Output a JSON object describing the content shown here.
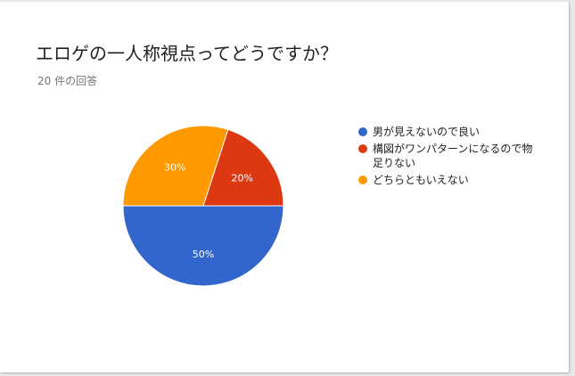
{
  "title": "エロゲの一人称視点ってどうですか？",
  "subtitle": "20 件の回答",
  "chart_data": {
    "type": "pie",
    "slices": [
      {
        "label": "男が見えないので良い",
        "value": 50,
        "percent_label": "50%",
        "color": "#3366cc"
      },
      {
        "label": "構図がワンパターンになるので物足りない",
        "value": 20,
        "percent_label": "20%",
        "color": "#dc3912"
      },
      {
        "label": "どちらともいえない",
        "value": 30,
        "percent_label": "30%",
        "color": "#ff9900"
      }
    ],
    "legend_position": "right"
  }
}
